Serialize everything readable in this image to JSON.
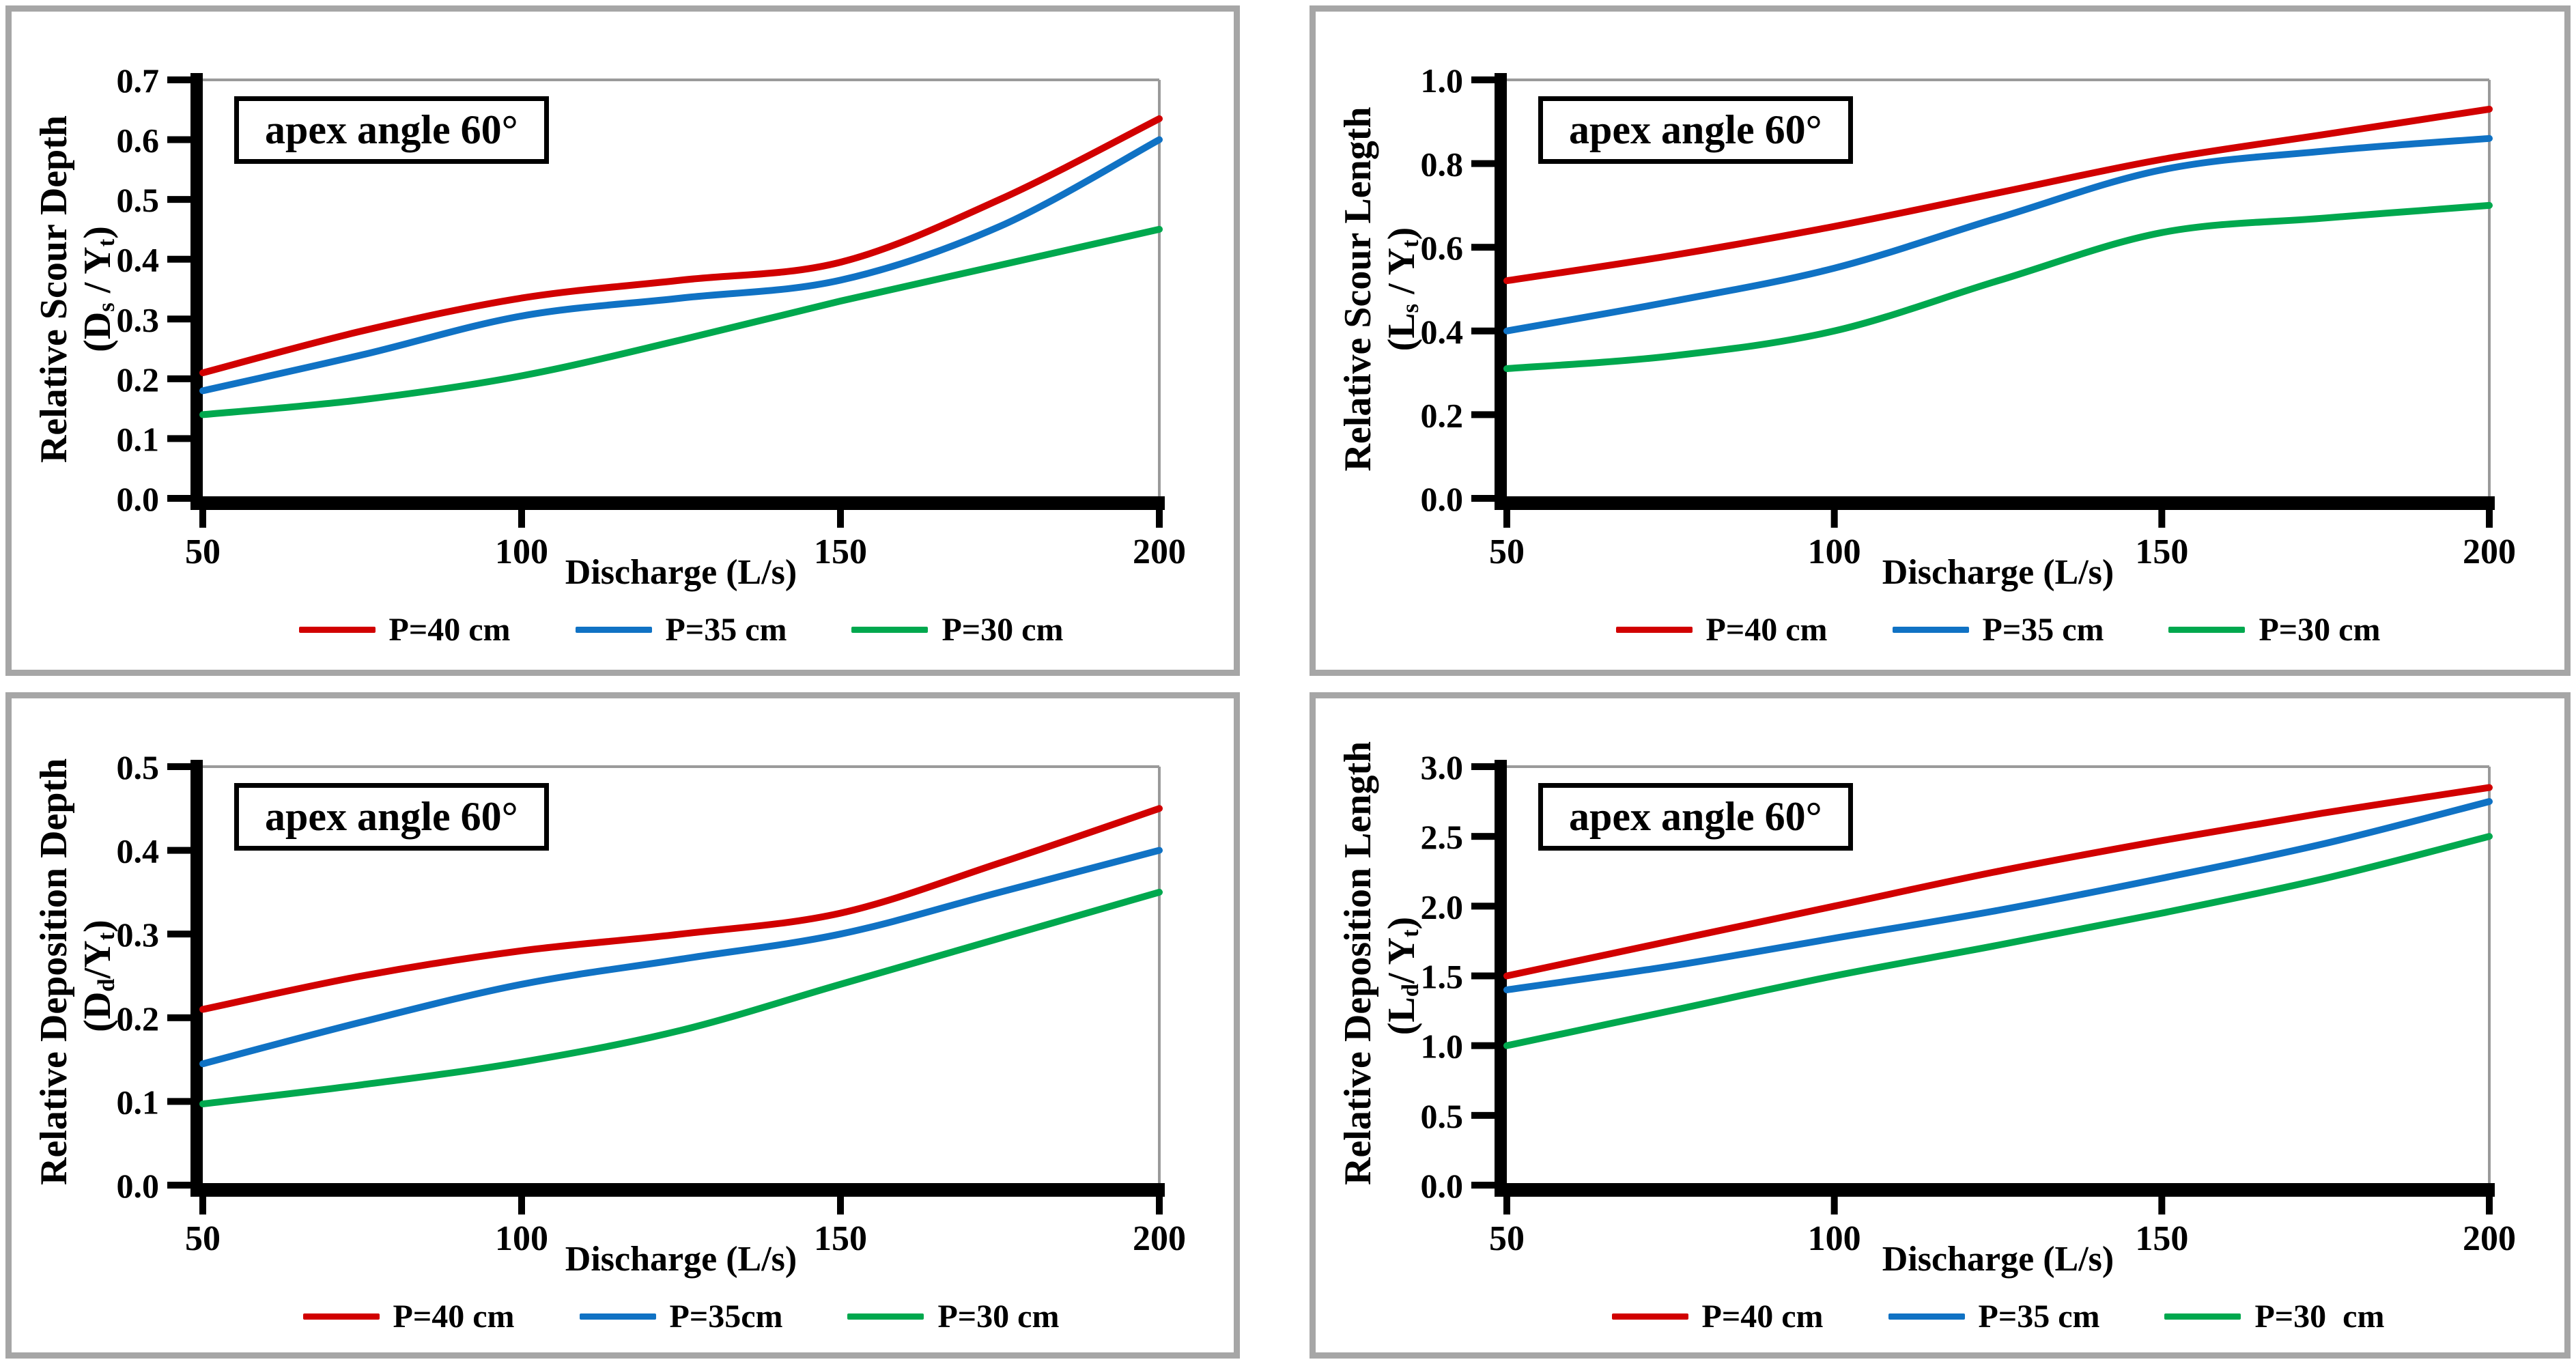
{
  "chart_data": [
    {
      "type": "line",
      "annotation": "apex angle 60°",
      "xlabel": "Discharge (L/s)",
      "ylabel": "Relative Scour Depth",
      "ylabel_parts": [
        "(D",
        "s",
        " / Y",
        "t",
        ")"
      ],
      "x": [
        50,
        75,
        100,
        125,
        150,
        175,
        200
      ],
      "xticks": [
        50,
        100,
        150,
        200
      ],
      "xlim": [
        50,
        200
      ],
      "ylim": [
        0,
        0.7
      ],
      "yticks": [
        "0.0",
        "0.1",
        "0.2",
        "0.3",
        "0.4",
        "0.5",
        "0.6",
        "0.7"
      ],
      "grid": false,
      "legend_position": "bottom",
      "series": [
        {
          "name": "P=40 cm",
          "color": "#d10000",
          "values": [
            0.21,
            0.28,
            0.335,
            0.365,
            0.395,
            0.5,
            0.635
          ]
        },
        {
          "name": "P=35 cm",
          "color": "#1072c4",
          "values": [
            0.18,
            0.24,
            0.305,
            0.335,
            0.365,
            0.455,
            0.6
          ]
        },
        {
          "name": "P=30 cm",
          "color": "#00a84e",
          "values": [
            0.14,
            0.165,
            0.205,
            0.265,
            0.33,
            0.39,
            0.45
          ]
        }
      ]
    },
    {
      "type": "line",
      "annotation": "apex angle 60°",
      "xlabel": "Discharge (L/s)",
      "ylabel": "Relative Scour Length",
      "ylabel_parts": [
        "(L",
        "s",
        " / Y",
        "t",
        ")"
      ],
      "x": [
        50,
        75,
        100,
        125,
        150,
        175,
        200
      ],
      "xticks": [
        50,
        100,
        150,
        200
      ],
      "xlim": [
        50,
        200
      ],
      "ylim": [
        0,
        1.0
      ],
      "yticks": [
        "0.0",
        "0.2",
        "0.4",
        "0.6",
        "0.8",
        "1.0"
      ],
      "grid": false,
      "legend_position": "bottom",
      "series": [
        {
          "name": "P=40 cm",
          "color": "#d10000",
          "values": [
            0.52,
            0.58,
            0.65,
            0.73,
            0.81,
            0.87,
            0.93
          ]
        },
        {
          "name": "P=35 cm",
          "color": "#1072c4",
          "values": [
            0.4,
            0.47,
            0.55,
            0.67,
            0.785,
            0.83,
            0.86
          ]
        },
        {
          "name": "P=30 cm",
          "color": "#00a84e",
          "values": [
            0.31,
            0.34,
            0.4,
            0.52,
            0.635,
            0.67,
            0.7
          ]
        }
      ]
    },
    {
      "type": "line",
      "annotation": "apex angle 60°",
      "xlabel": "Discharge (L/s)",
      "ylabel": "Relative Deposition Depth",
      "ylabel_parts": [
        "(D",
        "d",
        "/Y",
        "t",
        ")"
      ],
      "x": [
        50,
        75,
        100,
        125,
        150,
        175,
        200
      ],
      "xticks": [
        50,
        100,
        150,
        200
      ],
      "xlim": [
        50,
        200
      ],
      "ylim": [
        0,
        0.5
      ],
      "yticks": [
        "0.0",
        "0.1",
        "0.2",
        "0.3",
        "0.4",
        "0.5"
      ],
      "grid": false,
      "legend_position": "bottom",
      "series": [
        {
          "name": "P=40 cm",
          "color": "#d10000",
          "values": [
            0.21,
            0.25,
            0.28,
            0.3,
            0.325,
            0.385,
            0.45
          ]
        },
        {
          "name": "P=35cm",
          "color": "#1072c4",
          "values": [
            0.145,
            0.195,
            0.24,
            0.27,
            0.3,
            0.35,
            0.4
          ]
        },
        {
          "name": "P=30 cm",
          "color": "#00a84e",
          "values": [
            0.097,
            0.12,
            0.147,
            0.185,
            0.24,
            0.295,
            0.35
          ]
        }
      ]
    },
    {
      "type": "line",
      "annotation": "apex angle 60°",
      "xlabel": "Discharge (L/s)",
      "ylabel": "Relative Deposition Length",
      "ylabel_parts": [
        "(L",
        "d",
        "/ Y",
        "t",
        ")"
      ],
      "x": [
        50,
        75,
        100,
        125,
        150,
        175,
        200
      ],
      "xticks": [
        50,
        100,
        150,
        200
      ],
      "xlim": [
        50,
        200
      ],
      "ylim": [
        0,
        3.0
      ],
      "yticks": [
        "0.0",
        "0.5",
        "1.0",
        "1.5",
        "2.0",
        "2.5",
        "3.0"
      ],
      "grid": false,
      "legend_position": "bottom",
      "series": [
        {
          "name": "P=40 cm",
          "color": "#d10000",
          "values": [
            1.5,
            1.75,
            2.0,
            2.25,
            2.47,
            2.67,
            2.85
          ]
        },
        {
          "name": "P=35 cm",
          "color": "#1072c4",
          "values": [
            1.4,
            1.57,
            1.77,
            1.97,
            2.2,
            2.45,
            2.75
          ]
        },
        {
          "name": "P=30  cm",
          "color": "#00a84e",
          "values": [
            1.0,
            1.25,
            1.5,
            1.72,
            1.95,
            2.2,
            2.5
          ]
        }
      ]
    }
  ],
  "frame_color": "#a6a6a6",
  "axis_color": "#000000"
}
